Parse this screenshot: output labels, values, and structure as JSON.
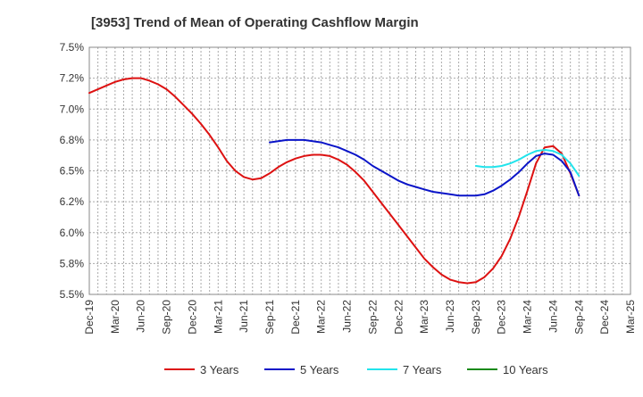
{
  "chart_data": {
    "type": "line",
    "title": "[3953]  Trend of Mean of Operating Cashflow Margin",
    "xlabel": "",
    "ylabel": "",
    "y_ticks": [
      "5.5%",
      "5.8%",
      "6.0%",
      "6.2%",
      "6.5%",
      "6.8%",
      "7.0%",
      "7.2%",
      "7.5%"
    ],
    "y_tick_values": [
      5.5,
      5.75,
      6.0,
      6.25,
      6.5,
      6.75,
      7.0,
      7.25,
      7.5
    ],
    "ylim": [
      5.5,
      7.5
    ],
    "x_ticks": [
      "Dec-19",
      "Mar-20",
      "Jun-20",
      "Sep-20",
      "Dec-20",
      "Mar-21",
      "Jun-21",
      "Sep-21",
      "Dec-21",
      "Mar-22",
      "Jun-22",
      "Sep-22",
      "Dec-22",
      "Mar-23",
      "Jun-23",
      "Sep-23",
      "Dec-23",
      "Mar-24",
      "Jun-24",
      "Sep-24",
      "Dec-24",
      "Mar-25"
    ],
    "grid": true,
    "legend_position": "bottom",
    "series": [
      {
        "name": "3 Years",
        "color": "#dd1111",
        "points": [
          [
            "Dec-19",
            7.13
          ],
          [
            "Jan-20",
            7.16
          ],
          [
            "Feb-20",
            7.19
          ],
          [
            "Mar-20",
            7.22
          ],
          [
            "Apr-20",
            7.24
          ],
          [
            "May-20",
            7.25
          ],
          [
            "Jun-20",
            7.25
          ],
          [
            "Jul-20",
            7.23
          ],
          [
            "Aug-20",
            7.2
          ],
          [
            "Sep-20",
            7.16
          ],
          [
            "Oct-20",
            7.1
          ],
          [
            "Nov-20",
            7.03
          ],
          [
            "Dec-20",
            6.96
          ],
          [
            "Jan-21",
            6.88
          ],
          [
            "Feb-21",
            6.79
          ],
          [
            "Mar-21",
            6.69
          ],
          [
            "Apr-21",
            6.58
          ],
          [
            "May-21",
            6.5
          ],
          [
            "Jun-21",
            6.45
          ],
          [
            "Jul-21",
            6.43
          ],
          [
            "Aug-21",
            6.44
          ],
          [
            "Sep-21",
            6.48
          ],
          [
            "Oct-21",
            6.53
          ],
          [
            "Nov-21",
            6.57
          ],
          [
            "Dec-21",
            6.6
          ],
          [
            "Jan-22",
            6.62
          ],
          [
            "Feb-22",
            6.63
          ],
          [
            "Mar-22",
            6.63
          ],
          [
            "Apr-22",
            6.62
          ],
          [
            "May-22",
            6.59
          ],
          [
            "Jun-22",
            6.55
          ],
          [
            "Jul-22",
            6.49
          ],
          [
            "Aug-22",
            6.42
          ],
          [
            "Sep-22",
            6.33
          ],
          [
            "Oct-22",
            6.24
          ],
          [
            "Nov-22",
            6.15
          ],
          [
            "Dec-22",
            6.06
          ],
          [
            "Jan-23",
            5.97
          ],
          [
            "Feb-23",
            5.88
          ],
          [
            "Mar-23",
            5.79
          ],
          [
            "Apr-23",
            5.72
          ],
          [
            "May-23",
            5.66
          ],
          [
            "Jun-23",
            5.62
          ],
          [
            "Jul-23",
            5.6
          ],
          [
            "Aug-23",
            5.59
          ],
          [
            "Sep-23",
            5.6
          ],
          [
            "Oct-23",
            5.64
          ],
          [
            "Nov-23",
            5.71
          ],
          [
            "Dec-23",
            5.81
          ],
          [
            "Jan-24",
            5.95
          ],
          [
            "Feb-24",
            6.13
          ],
          [
            "Mar-24",
            6.34
          ],
          [
            "Apr-24",
            6.56
          ],
          [
            "May-24",
            6.69
          ],
          [
            "Jun-24",
            6.7
          ],
          [
            "Jul-24",
            6.64
          ],
          [
            "Aug-24",
            6.48
          ],
          [
            "Sep-24",
            6.3
          ]
        ]
      },
      {
        "name": "5 Years",
        "color": "#0a14c8",
        "points": [
          [
            "Sep-21",
            6.73
          ],
          [
            "Oct-21",
            6.74
          ],
          [
            "Nov-21",
            6.75
          ],
          [
            "Dec-21",
            6.75
          ],
          [
            "Jan-22",
            6.75
          ],
          [
            "Feb-22",
            6.74
          ],
          [
            "Mar-22",
            6.73
          ],
          [
            "Apr-22",
            6.71
          ],
          [
            "May-22",
            6.69
          ],
          [
            "Jun-22",
            6.66
          ],
          [
            "Jul-22",
            6.63
          ],
          [
            "Aug-22",
            6.59
          ],
          [
            "Sep-22",
            6.54
          ],
          [
            "Oct-22",
            6.5
          ],
          [
            "Nov-22",
            6.46
          ],
          [
            "Dec-22",
            6.42
          ],
          [
            "Jan-23",
            6.39
          ],
          [
            "Feb-23",
            6.37
          ],
          [
            "Mar-23",
            6.35
          ],
          [
            "Apr-23",
            6.33
          ],
          [
            "May-23",
            6.32
          ],
          [
            "Jun-23",
            6.31
          ],
          [
            "Jul-23",
            6.3
          ],
          [
            "Aug-23",
            6.3
          ],
          [
            "Sep-23",
            6.3
          ],
          [
            "Oct-23",
            6.31
          ],
          [
            "Nov-23",
            6.34
          ],
          [
            "Dec-23",
            6.38
          ],
          [
            "Jan-24",
            6.43
          ],
          [
            "Feb-24",
            6.49
          ],
          [
            "Mar-24",
            6.56
          ],
          [
            "Apr-24",
            6.62
          ],
          [
            "May-24",
            6.64
          ],
          [
            "Jun-24",
            6.63
          ],
          [
            "Jul-24",
            6.58
          ],
          [
            "Aug-24",
            6.49
          ],
          [
            "Sep-24",
            6.3
          ]
        ]
      },
      {
        "name": "7 Years",
        "color": "#22e4ec",
        "points": [
          [
            "Sep-23",
            6.54
          ],
          [
            "Oct-23",
            6.53
          ],
          [
            "Nov-23",
            6.53
          ],
          [
            "Dec-23",
            6.54
          ],
          [
            "Jan-24",
            6.56
          ],
          [
            "Feb-24",
            6.59
          ],
          [
            "Mar-24",
            6.63
          ],
          [
            "Apr-24",
            6.66
          ],
          [
            "May-24",
            6.67
          ],
          [
            "Jun-24",
            6.66
          ],
          [
            "Jul-24",
            6.63
          ],
          [
            "Aug-24",
            6.56
          ],
          [
            "Sep-24",
            6.46
          ]
        ]
      },
      {
        "name": "10 Years",
        "color": "#1a8a1a",
        "points": []
      }
    ]
  }
}
